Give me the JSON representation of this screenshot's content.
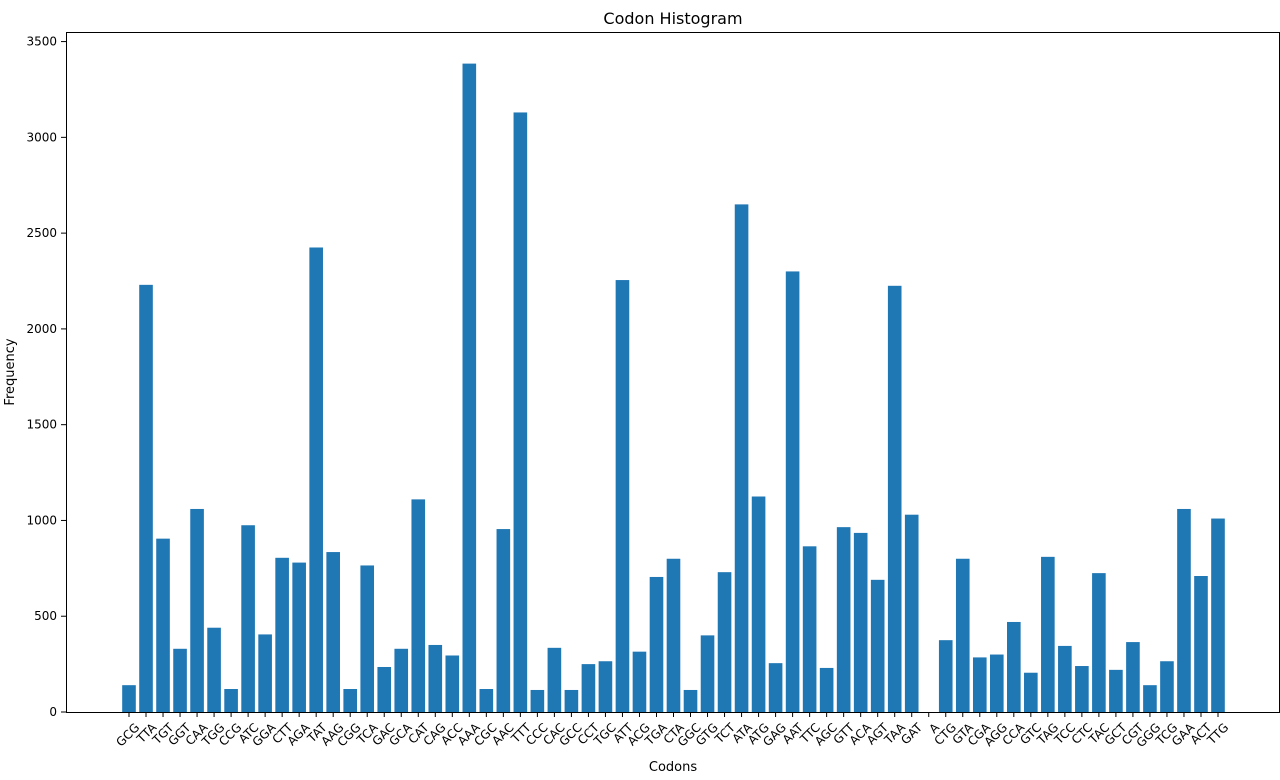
{
  "chart_data": {
    "type": "bar",
    "title": "Codon Histogram",
    "xlabel": "Codons",
    "ylabel": "Frequency",
    "ylim": [
      0,
      3550
    ],
    "yticks": [
      0,
      500,
      1000,
      1500,
      2000,
      2500,
      3000,
      3500
    ],
    "grid": false,
    "bar_color": "#1f77b4",
    "categories": [
      "GCG",
      "TTA",
      "TGT",
      "GGT",
      "CAA",
      "TGG",
      "CCG",
      "ATC",
      "GGA",
      "CTT",
      "AGA",
      "TAT",
      "AAG",
      "CGG",
      "TCA",
      "GAC",
      "GCA",
      "CAT",
      "CAG",
      "ACC",
      "AAA",
      "CGC",
      "AAC",
      "TTT",
      "CCC",
      "CAC",
      "GCC",
      "CCT",
      "TGC",
      "ATT",
      "ACG",
      "TGA",
      "CTA",
      "GGC",
      "GTG",
      "TCT",
      "ATA",
      "ATG",
      "GAG",
      "AAT",
      "TTC",
      "AGC",
      "GTT",
      "ACA",
      "AGT",
      "TAA",
      "GAT",
      "A",
      "CTG",
      "GTA",
      "CGA",
      "AGG",
      "CCA",
      "GTC",
      "TAG",
      "TCC",
      "CTC",
      "TAC",
      "GCT",
      "CGT",
      "GGG",
      "TCG",
      "GAA",
      "ACT",
      "TTG"
    ],
    "values": [
      140,
      2230,
      905,
      330,
      1060,
      440,
      120,
      975,
      405,
      805,
      780,
      2425,
      835,
      120,
      765,
      235,
      330,
      1110,
      350,
      295,
      3385,
      120,
      955,
      3130,
      115,
      335,
      115,
      250,
      265,
      2255,
      315,
      705,
      800,
      115,
      400,
      730,
      2650,
      1125,
      255,
      2300,
      865,
      230,
      965,
      935,
      690,
      2225,
      1030,
      0,
      375,
      800,
      285,
      300,
      470,
      205,
      810,
      345,
      240,
      725,
      220,
      365,
      140,
      265,
      1060,
      710,
      1010
    ]
  }
}
